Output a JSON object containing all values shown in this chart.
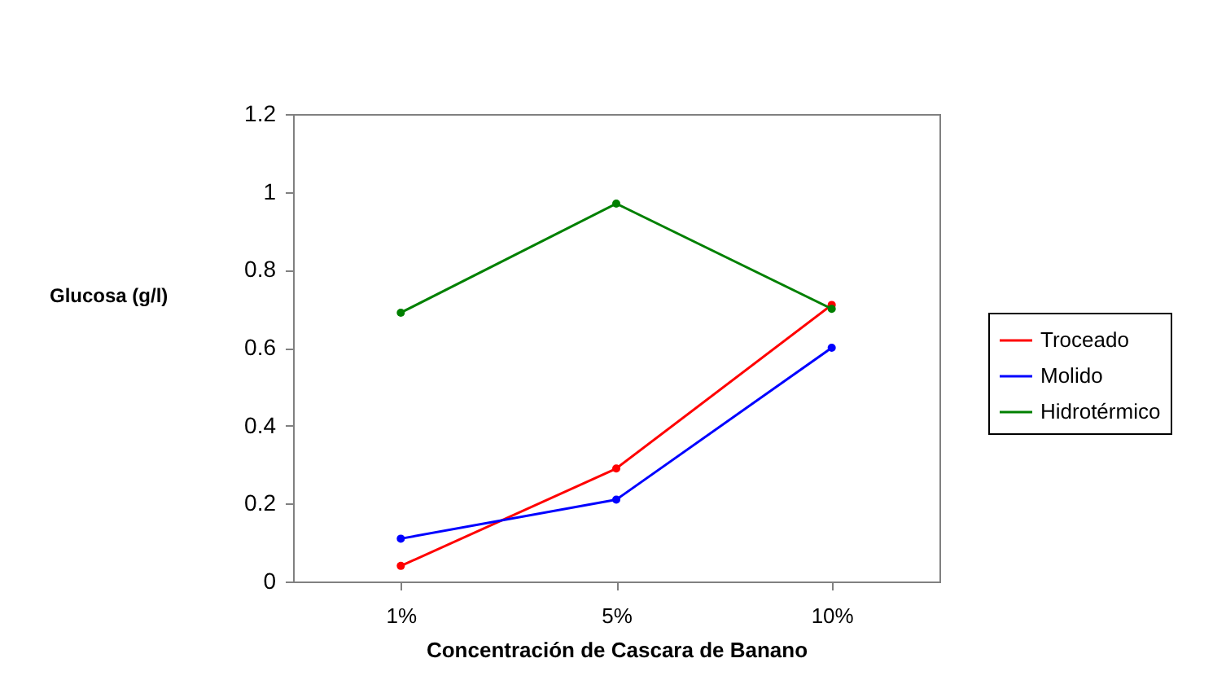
{
  "chart_data": {
    "type": "line",
    "xlabel": "Concentración de  Cascara de Banano",
    "ylabel": "Glucosa (g/l)",
    "categories": [
      "1%",
      "5%",
      "10%"
    ],
    "series": [
      {
        "name": "Troceado",
        "color": "#ff0000",
        "values": [
          0.04,
          0.29,
          0.71
        ]
      },
      {
        "name": "Molido",
        "color": "#0000ff",
        "values": [
          0.11,
          0.21,
          0.6
        ]
      },
      {
        "name": "Hidrotérmico",
        "color": "#008000",
        "values": [
          0.69,
          0.97,
          0.7
        ]
      }
    ],
    "ylim": [
      0,
      1.2
    ],
    "yticks": [
      0,
      0.2,
      0.4,
      0.6,
      0.8,
      1,
      1.2
    ],
    "grid": false,
    "legend": "right",
    "marker": "circle",
    "line_style": "solid"
  }
}
